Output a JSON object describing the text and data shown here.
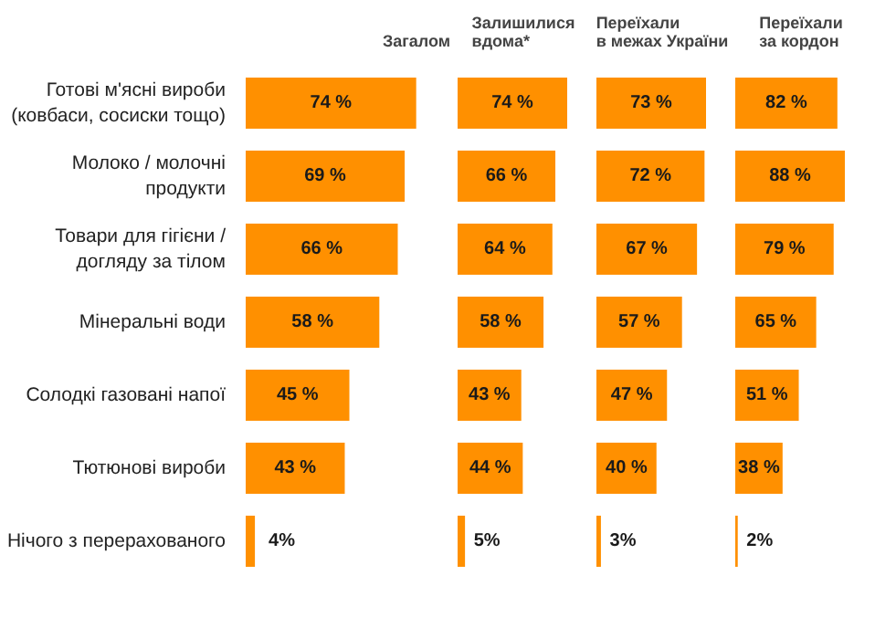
{
  "chart_data": [
    {
      "type": "bar",
      "orientation": "horizontal",
      "title": "Загалом",
      "tick_labels": "y",
      "categories": [
        "Готові м'ясні вироби\n(ковбаси, сосиски тощо)",
        "Молоко / молочні\nпродукти",
        "Товари для гігієни /\nдогляду за тілом",
        "Мінеральні води",
        "Солодкі газовані напої",
        "Тютюнові вироби",
        "Нічого з перерахованого"
      ],
      "values": [
        74,
        69,
        66,
        58,
        45,
        43,
        4
      ],
      "value_labels": [
        "74 %",
        "69 %",
        "66 %",
        "58 %",
        "45 %",
        "43 %",
        "4%"
      ],
      "color": "#ff9000"
    },
    {
      "type": "bar",
      "orientation": "horizontal",
      "title": "Залишилися\nвдома*",
      "tick_labels": false,
      "categories": [
        null,
        null,
        null,
        null,
        null,
        null,
        null
      ],
      "values": [
        74,
        66,
        64,
        58,
        43,
        44,
        5
      ],
      "value_labels": [
        "74 %",
        "66 %",
        "64 %",
        "58 %",
        "43 %",
        "44 %",
        "5%"
      ],
      "color": "#ff9000"
    },
    {
      "type": "bar",
      "orientation": "horizontal",
      "title": "Переїхали\nв межах України",
      "tick_labels": false,
      "categories": [
        null,
        null,
        null,
        null,
        null,
        null,
        null
      ],
      "values": [
        73,
        72,
        67,
        57,
        47,
        40,
        3
      ],
      "value_labels": [
        "73 %",
        "72 %",
        "67 %",
        "57 %",
        "47 %",
        "40 %",
        "3%"
      ],
      "color": "#ff9000"
    },
    {
      "type": "bar",
      "orientation": "horizontal",
      "title": "Переїхали\nза кордон",
      "tick_labels": false,
      "categories": [
        null,
        null,
        null,
        null,
        null,
        null,
        null
      ],
      "values": [
        82,
        88,
        79,
        65,
        51,
        38,
        2
      ],
      "value_labels": [
        "82 %",
        "88 %",
        "79 %",
        "65 %",
        "51 %",
        "38 %",
        "2%"
      ],
      "color": "#ff9000"
    }
  ]
}
